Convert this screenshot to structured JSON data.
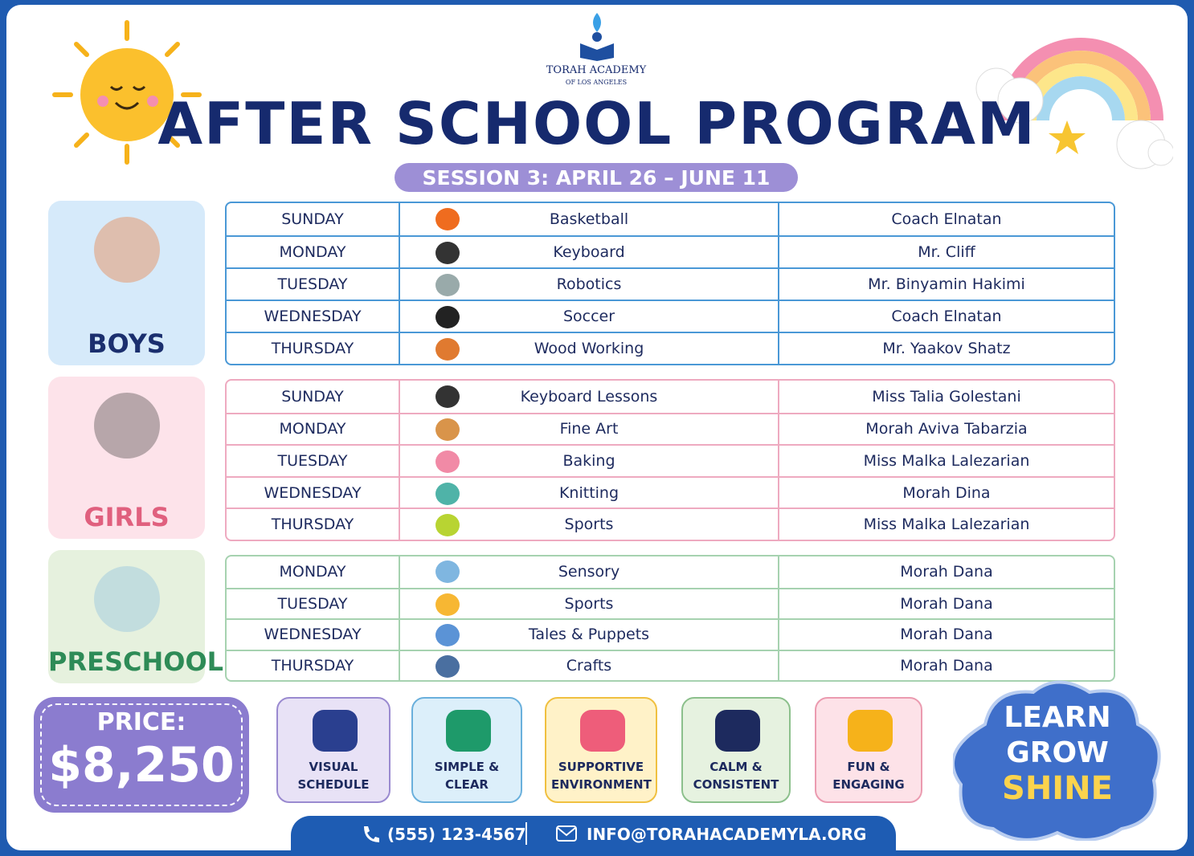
{
  "logo": {
    "name": "TORAH ACADEMY",
    "sub": "OF LOS ANGELES"
  },
  "title": "AFTER SCHOOL PROGRAM",
  "session": "SESSION 3: APRIL 26 – JUNE 11",
  "groups": [
    {
      "label": "BOYS",
      "rows": [
        [
          "SUNDAY",
          "Basketball",
          "Coach Elnatan"
        ],
        [
          "MONDAY",
          "Keyboard",
          "Mr. Cliff"
        ],
        [
          "TUESDAY",
          "Robotics",
          "Mr. Binyamin Hakimi"
        ],
        [
          "WEDNESDAY",
          "Soccer",
          "Coach Elnatan"
        ],
        [
          "THURSDAY",
          "Wood Working",
          "Mr. Yaakov Shatz"
        ]
      ]
    },
    {
      "label": "GIRLS",
      "rows": [
        [
          "SUNDAY",
          "Keyboard Lessons",
          "Miss Talia Golestani"
        ],
        [
          "MONDAY",
          "Fine Art",
          "Morah Aviva Tabarzia"
        ],
        [
          "TUESDAY",
          "Baking",
          "Miss Malka Lalezarian"
        ],
        [
          "WEDNESDAY",
          "Knitting",
          "Morah Dina"
        ],
        [
          "THURSDAY",
          "Sports",
          "Miss Malka Lalezarian"
        ]
      ]
    },
    {
      "label": "PRESCHOOL",
      "rows": [
        [
          "MONDAY",
          "Sensory",
          "Morah Dana"
        ],
        [
          "TUESDAY",
          "Sports",
          "Morah Dana"
        ],
        [
          "WEDNESDAY",
          "Tales & Puppets",
          "Morah Dana"
        ],
        [
          "THURSDAY",
          "Crafts",
          "Morah Dana"
        ]
      ]
    }
  ],
  "price": {
    "label": "PRICE:",
    "amount": "$8,250"
  },
  "features": [
    "VISUAL SCHEDULE",
    "SIMPLE & CLEAR",
    "SUPPORTIVE ENVIRONMENT",
    "CALM & CONSISTENT",
    "FUN & ENGAGING"
  ],
  "slogan": [
    "LEARN",
    "GROW",
    "SHINE"
  ],
  "contact": {
    "phone": "(555) 123-4567",
    "email": "INFO@TORAHACADEMYLA.ORG"
  }
}
